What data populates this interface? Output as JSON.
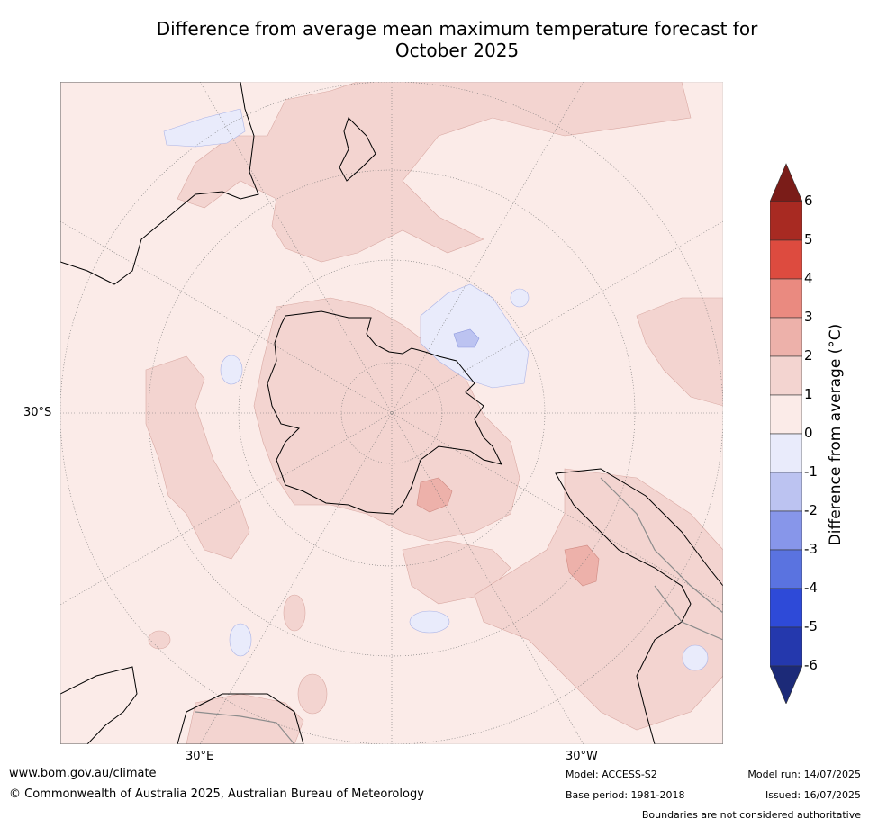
{
  "title_line1": "Difference from average mean maximum temperature forecast for",
  "title_line2": "October 2025",
  "map": {
    "projection": "south-polar-stereographic",
    "lat_labels": [
      "30°S"
    ],
    "lon_labels": [
      "30°E",
      "30°W"
    ],
    "land_color": "#ffffff",
    "coastline_color": "#000000",
    "boundary_color": "#8c8c8c",
    "regions": [
      {
        "name": "south-pacific-warm",
        "category": "1 to 2"
      },
      {
        "name": "east-antarctica-warm",
        "category": "1 to 2"
      },
      {
        "name": "south-america-warm",
        "category": "1 to 2"
      },
      {
        "name": "south-atlantic-warm-core",
        "category": "2 to 3"
      },
      {
        "name": "drake-passage-warm-core",
        "category": "2 to 3"
      },
      {
        "name": "weddell-sea-cool",
        "category": "0 to -1"
      },
      {
        "name": "weddell-sea-cool-core",
        "category": "-1 to -2"
      },
      {
        "name": "tasman-sea-cool",
        "category": "0 to -1"
      }
    ]
  },
  "colorbar": {
    "label": "Difference from average ( $^\\circ$C)",
    "label_display": "Difference from average (°C)",
    "ticks": [
      "6",
      "5",
      "4",
      "3",
      "2",
      "1",
      "0",
      "-1",
      "-2",
      "-3",
      "-4",
      "-5",
      "-6"
    ],
    "colors": {
      "above_6": "#7a1c18",
      "5_to_6": "#a82a22",
      "4_to_5": "#dd4b3f",
      "3_to_4": "#ea8a80",
      "2_to_3": "#edb1aa",
      "1_to_2": "#f3d4d0",
      "0_to_1": "#fbebe8",
      "0_to_-1": "#e9ebfb",
      "-1_to_-2": "#bcc3f1",
      "-2_to_-3": "#8796ea",
      "-3_to_-4": "#5a73e0",
      "-4_to_-5": "#2e4ad8",
      "-5_to_-6": "#2438ad",
      "below_-6": "#1c2a78"
    }
  },
  "footer": {
    "url": "www.bom.gov.au/climate",
    "copyright": "© Commonwealth of Australia 2025, Australian Bureau of Meteorology",
    "model": "Model: ACCESS-S2",
    "base_period": "Base period: 1981-2018",
    "model_run": "Model run: 14/07/2025",
    "issued": "Issued: 16/07/2025",
    "disclaimer": "Boundaries are not considered authoritative"
  }
}
